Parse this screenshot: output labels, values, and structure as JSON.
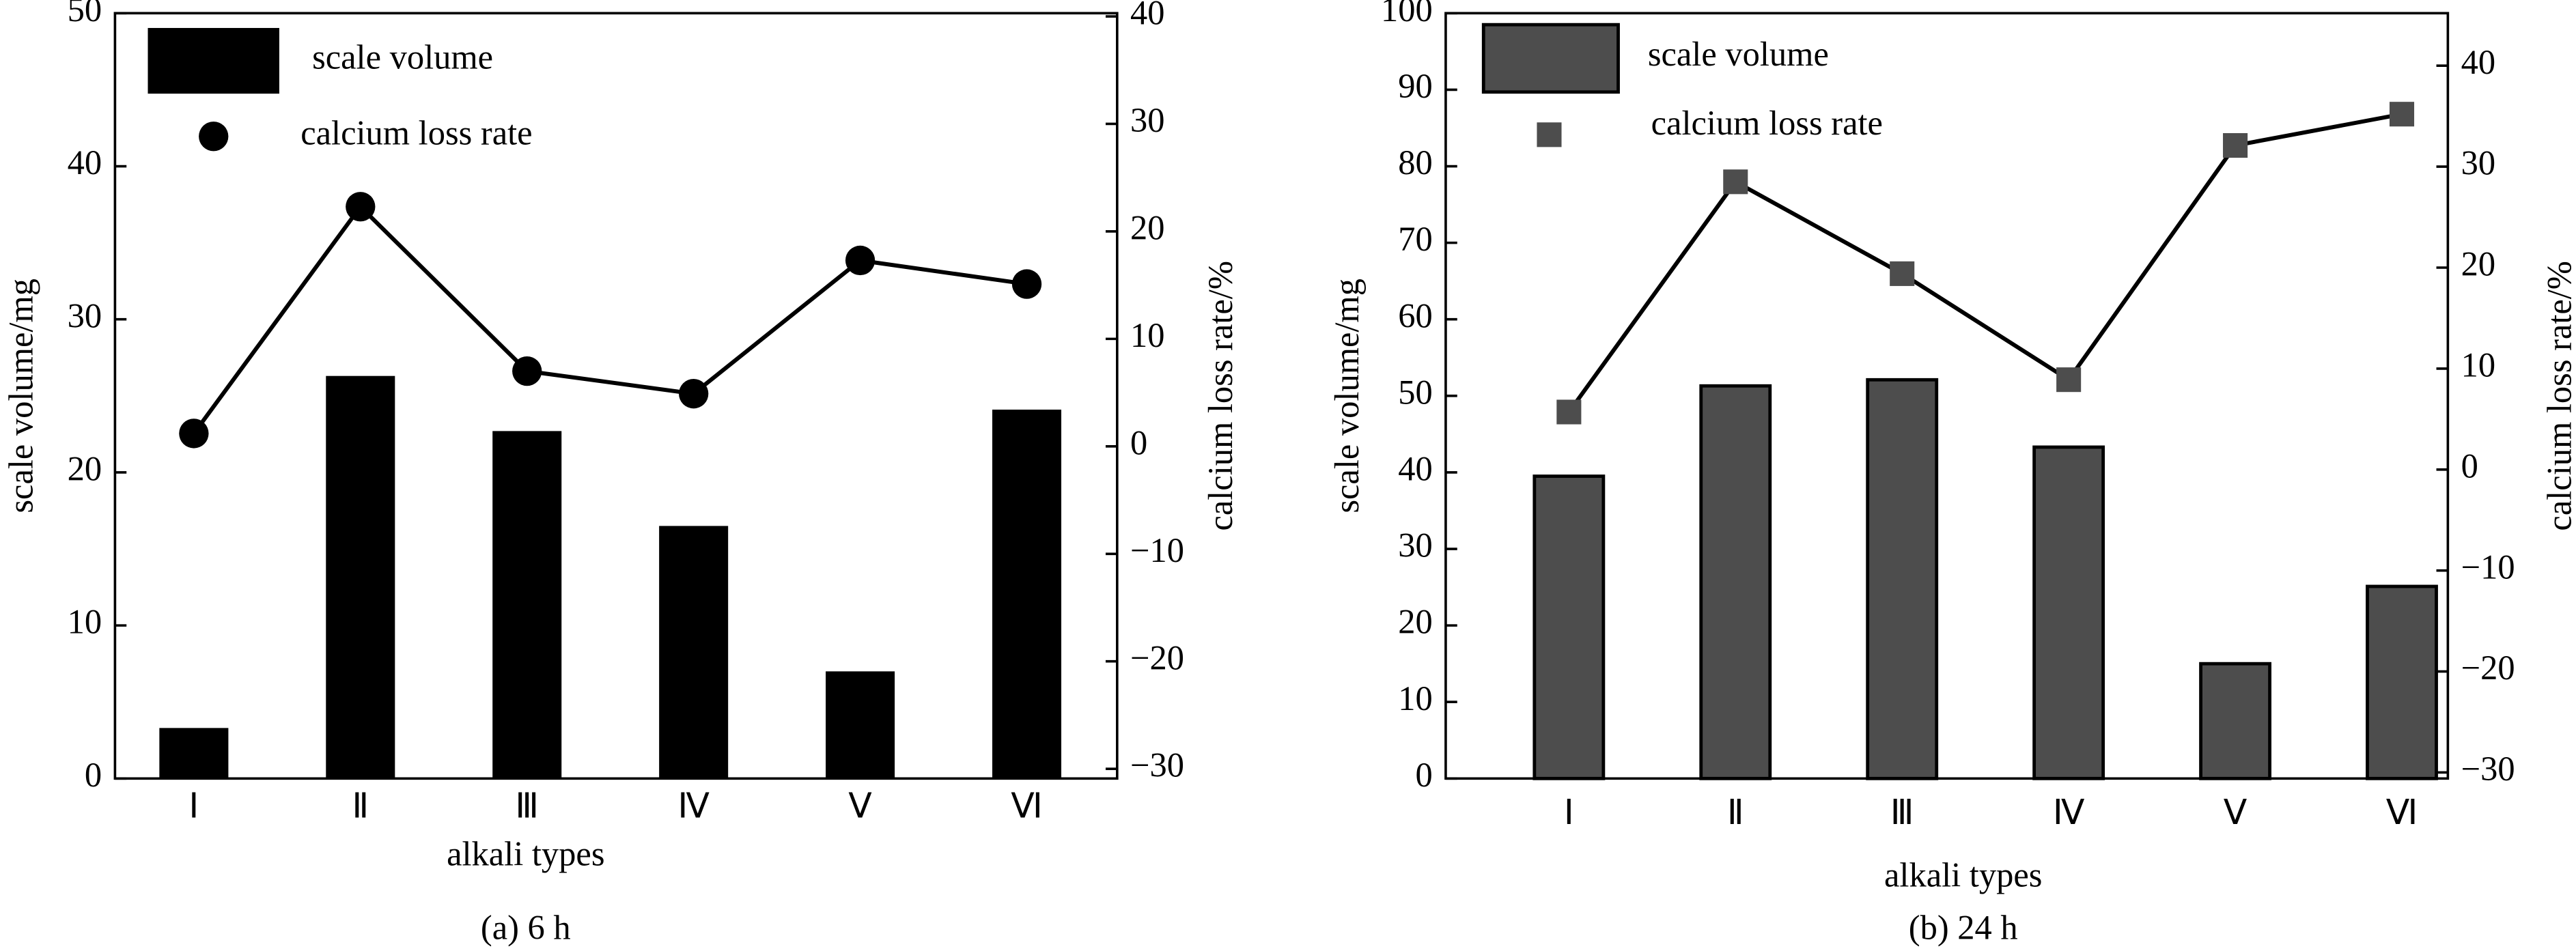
{
  "chart_data": [
    {
      "type": "bar",
      "caption": "(a) 6 h",
      "x_label": "alkali types",
      "y_label": "scale volume/mg",
      "y2_label": "calcium loss rate/%",
      "categories": [
        "Ⅰ",
        "Ⅱ",
        "Ⅲ",
        "Ⅳ",
        "Ⅴ",
        "Ⅵ"
      ],
      "series": [
        {
          "name": "scale volume",
          "type": "bar",
          "color": "#000000",
          "values": [
            3.3,
            26.3,
            22.7,
            16.5,
            7.0,
            24.1
          ]
        },
        {
          "name": "calcium loss rate",
          "type": "line",
          "axis": "y2",
          "marker": "circle",
          "color": "#000000",
          "values": [
            1.2,
            22.3,
            7.0,
            4.9,
            17.3,
            15.1
          ]
        }
      ],
      "ylim": [
        0,
        50
      ],
      "yticks": [
        0,
        10,
        20,
        30,
        40,
        50
      ],
      "y2lim": [
        -30.9,
        40.3
      ],
      "y2ticks": [
        -30,
        -20,
        -10,
        0,
        10,
        20,
        30,
        40
      ]
    },
    {
      "type": "bar",
      "caption": "(b) 24 h",
      "x_label": "alkali types",
      "y_label": "scale volume/mg",
      "y2_label": "calcium loss rate/%",
      "categories": [
        "Ⅰ",
        "Ⅱ",
        "Ⅲ",
        "Ⅳ",
        "Ⅴ",
        "Ⅵ"
      ],
      "series": [
        {
          "name": "scale volume",
          "type": "bar",
          "color": "#4d4d4d",
          "values": [
            39.5,
            51.3,
            52.1,
            43.3,
            15.0,
            25.1
          ]
        },
        {
          "name": "calcium loss rate",
          "type": "line",
          "axis": "y2",
          "marker": "square",
          "color": "#4d4d4d",
          "values": [
            5.7,
            28.5,
            19.4,
            8.9,
            32.1,
            35.2
          ]
        }
      ],
      "ylim": [
        0,
        100
      ],
      "yticks": [
        0,
        10,
        20,
        30,
        40,
        50,
        60,
        70,
        80,
        90,
        100
      ],
      "y2lim": [
        -30.6,
        45.2
      ],
      "y2ticks": [
        -30,
        -20,
        -10,
        0,
        10,
        20,
        30,
        40
      ]
    }
  ]
}
